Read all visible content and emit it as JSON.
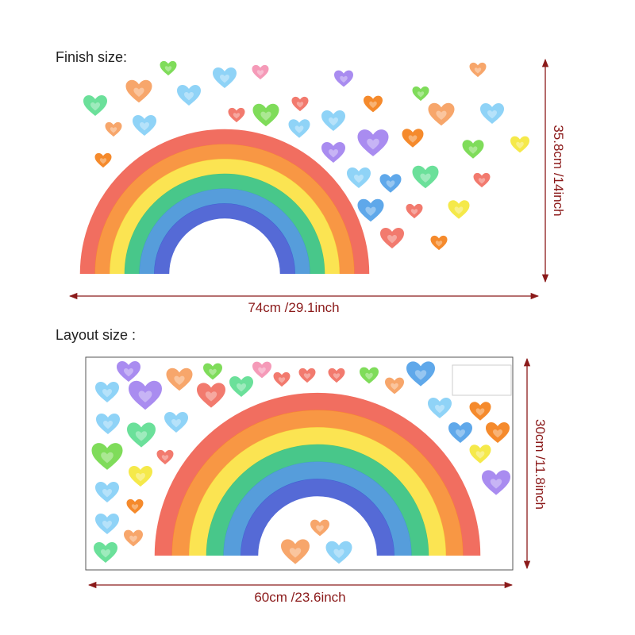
{
  "finish": {
    "label": "Finish size:",
    "width": "74cm /29.1inch",
    "height": "35.8cm /14inch"
  },
  "layout": {
    "label": "Layout size :",
    "width": "60cm /23.6inch",
    "height": "30cm /11.8inch"
  }
}
